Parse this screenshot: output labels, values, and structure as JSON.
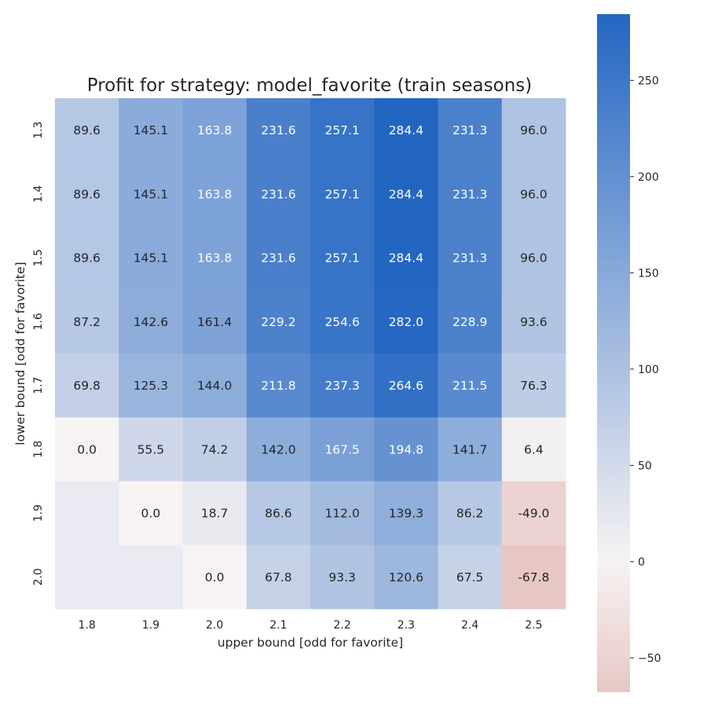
{
  "chart_data": {
    "type": "heatmap",
    "title": "Profit for strategy: model_favorite (train seasons)",
    "xlabel": "upper bound [odd for favorite]",
    "ylabel": "lower bound [odd for favorite]",
    "x_categories": [
      "1.8",
      "1.9",
      "2.0",
      "2.1",
      "2.2",
      "2.3",
      "2.4",
      "2.5"
    ],
    "y_categories": [
      "1.3",
      "1.4",
      "1.5",
      "1.6",
      "1.7",
      "1.8",
      "1.9",
      "2.0"
    ],
    "values": [
      [
        89.6,
        145.1,
        163.8,
        231.6,
        257.1,
        284.4,
        231.3,
        96.0
      ],
      [
        89.6,
        145.1,
        163.8,
        231.6,
        257.1,
        284.4,
        231.3,
        96.0
      ],
      [
        89.6,
        145.1,
        163.8,
        231.6,
        257.1,
        284.4,
        231.3,
        96.0
      ],
      [
        87.2,
        142.6,
        161.4,
        229.2,
        254.6,
        282.0,
        228.9,
        93.6
      ],
      [
        69.8,
        125.3,
        144.0,
        211.8,
        237.3,
        264.6,
        211.5,
        76.3
      ],
      [
        0.0,
        55.5,
        74.2,
        142.0,
        167.5,
        194.8,
        141.7,
        6.4
      ],
      [
        null,
        0.0,
        18.7,
        86.6,
        112.0,
        139.3,
        86.2,
        -49.0
      ],
      [
        null,
        null,
        0.0,
        67.8,
        93.3,
        120.6,
        67.5,
        -67.8
      ]
    ],
    "missing_color": "#eaeaf2",
    "colormap": {
      "min": -67.8,
      "max": 284.4,
      "center": 0,
      "low_color": "#e6c7c4",
      "center_color": "#f7f3f3",
      "high_color": "#2366c2"
    },
    "colorbar": {
      "ticks": [
        -50,
        0,
        50,
        100,
        150,
        200,
        250
      ],
      "tick_labels": [
        "−50",
        "0",
        "50",
        "100",
        "150",
        "200",
        "250"
      ]
    },
    "grid": false,
    "legend": "colorbar-right"
  }
}
